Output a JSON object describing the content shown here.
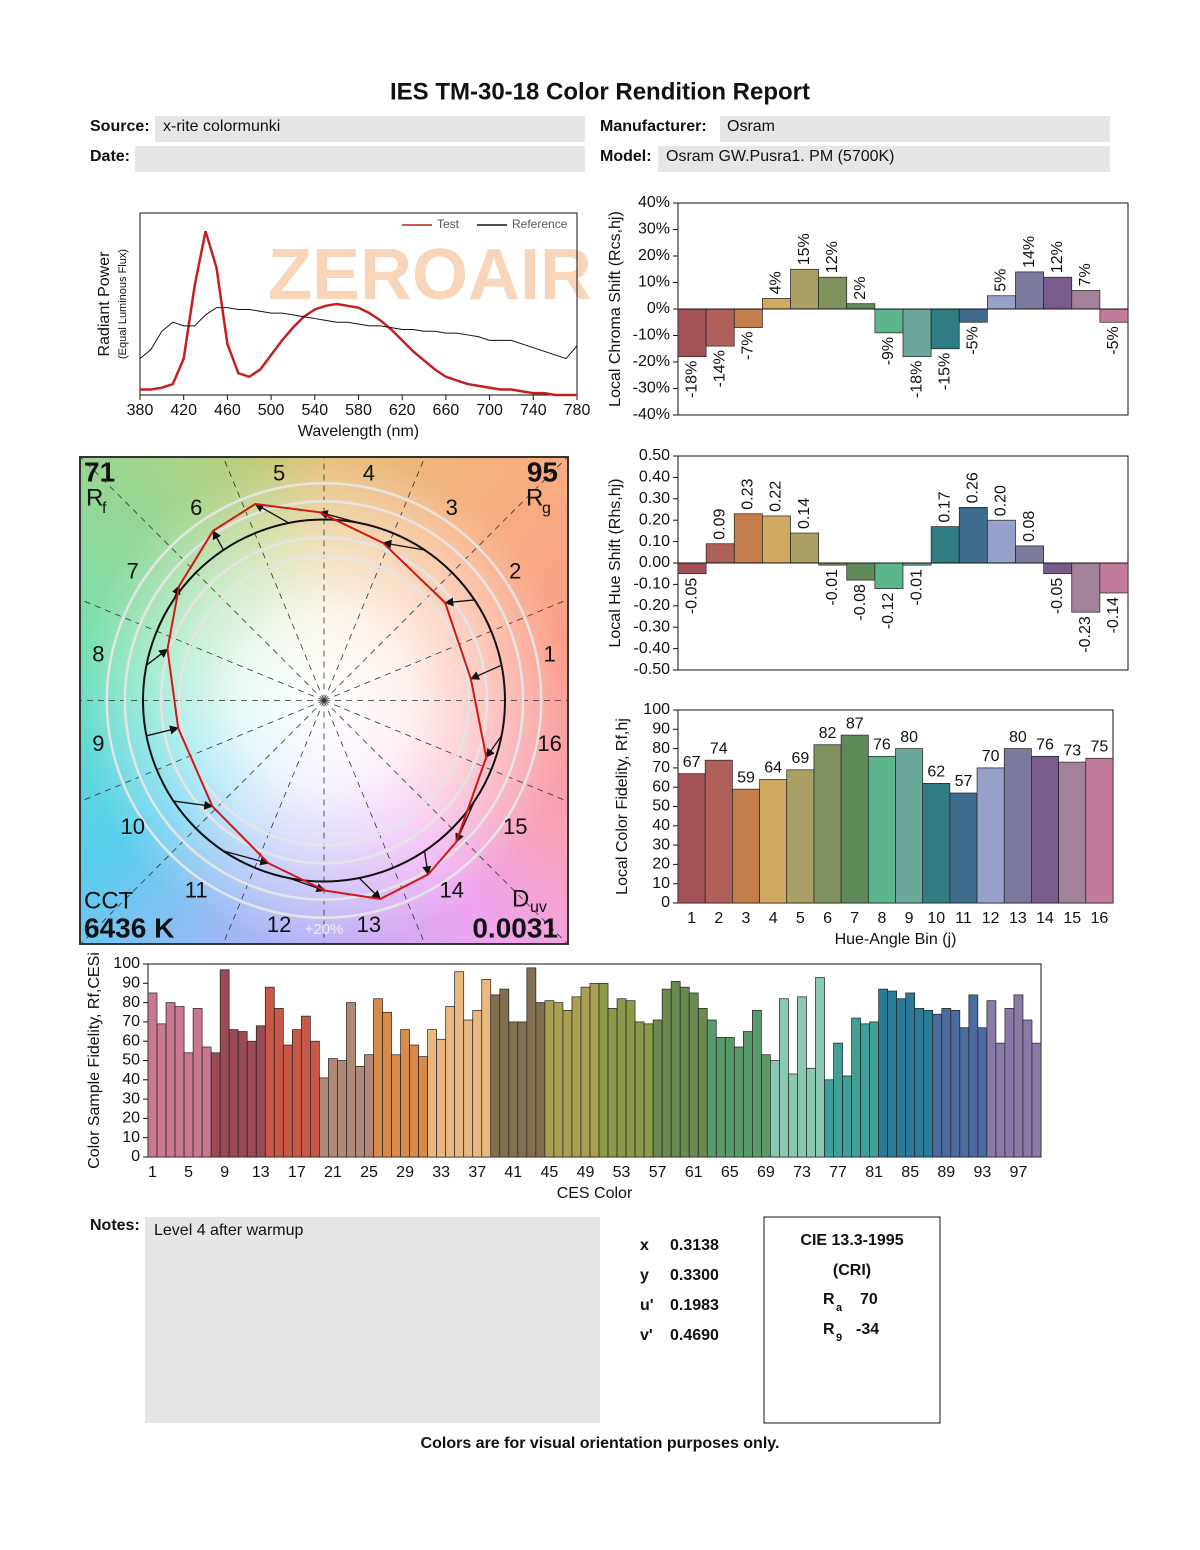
{
  "header": {
    "title": "IES TM-30-18 Color Rendition Report",
    "source_label": "Source:",
    "source": "x-rite colormunki",
    "manufacturer_label": "Manufacturer:",
    "manufacturer": "Osram",
    "date_label": "Date:",
    "model_label": "Model:",
    "model": "Osram GW.Pusra1. PM (5700K)"
  },
  "watermark": "ZEROAIR",
  "chart_data": [
    {
      "type": "line",
      "x": [
        380,
        390,
        400,
        410,
        420,
        430,
        440,
        450,
        460,
        470,
        480,
        490,
        500,
        510,
        520,
        530,
        540,
        550,
        560,
        570,
        580,
        590,
        600,
        610,
        620,
        630,
        640,
        650,
        660,
        670,
        680,
        690,
        700,
        710,
        720,
        730,
        740,
        750,
        760,
        770,
        780
      ],
      "series": [
        {
          "name": "Test",
          "color": "#c42020",
          "values": [
            0.03,
            0.03,
            0.04,
            0.06,
            0.2,
            0.6,
            0.9,
            0.7,
            0.28,
            0.12,
            0.1,
            0.14,
            0.22,
            0.3,
            0.37,
            0.43,
            0.47,
            0.49,
            0.5,
            0.49,
            0.48,
            0.45,
            0.41,
            0.36,
            0.3,
            0.24,
            0.19,
            0.14,
            0.1,
            0.08,
            0.06,
            0.05,
            0.04,
            0.03,
            0.03,
            0.02,
            0.01,
            0.01,
            0.0,
            0.0,
            0.0
          ]
        },
        {
          "name": "Reference",
          "color": "#111111",
          "values": [
            0.2,
            0.25,
            0.35,
            0.4,
            0.38,
            0.38,
            0.44,
            0.48,
            0.48,
            0.47,
            0.47,
            0.46,
            0.45,
            0.45,
            0.44,
            0.43,
            0.42,
            0.41,
            0.4,
            0.4,
            0.39,
            0.38,
            0.38,
            0.37,
            0.36,
            0.36,
            0.35,
            0.35,
            0.34,
            0.34,
            0.33,
            0.32,
            0.3,
            0.3,
            0.3,
            0.28,
            0.26,
            0.24,
            0.22,
            0.2,
            0.27
          ]
        }
      ],
      "xlim": [
        380,
        780
      ],
      "xticks": [
        380,
        420,
        460,
        500,
        540,
        580,
        620,
        660,
        700,
        740,
        780
      ],
      "ylim": [
        0,
        1
      ],
      "xlabel": "Wavelength (nm)",
      "ylabel": "Radiant Power",
      "ylabel_sub": "(Equal Luminous Flux)"
    },
    {
      "type": "bar",
      "values": [
        -18,
        -14,
        -7,
        4,
        15,
        12,
        2,
        -9,
        -18,
        -15,
        -5,
        5,
        14,
        12,
        7,
        -5
      ],
      "value_labels": [
        "-18%",
        "-14%",
        "-7%",
        "4%",
        "15%",
        "12%",
        "2%",
        "-9%",
        "-18%",
        "-15%",
        "-5%",
        "5%",
        "14%",
        "12%",
        "7%",
        "-5%"
      ],
      "label_rotate": true,
      "ylim": [
        -40,
        40
      ],
      "yticks": [
        {
          "value": 40,
          "label": "40%"
        },
        {
          "value": 30,
          "label": "30%"
        },
        {
          "value": 20,
          "label": "20%"
        },
        {
          "value": 10,
          "label": "10%"
        },
        {
          "value": 0,
          "label": "0%"
        },
        {
          "value": -10,
          "label": "-10%"
        },
        {
          "value": -20,
          "label": "-20%"
        },
        {
          "value": -30,
          "label": "-30%"
        },
        {
          "value": -40,
          "label": "-40%"
        }
      ],
      "ylabel": "Local Chroma Shift (Rcs,hj)",
      "colors": [
        "#a35057",
        "#b0605a",
        "#c27d4a",
        "#d0aa63",
        "#aaa065",
        "#81915d",
        "#5f8a5a",
        "#5db58d",
        "#6ba79a",
        "#2f7c83",
        "#3e6a8c",
        "#97a0c9",
        "#7b7a9c",
        "#785d8c",
        "#a2819a",
        "#c27b9a"
      ]
    },
    {
      "type": "bar",
      "values": [
        -0.05,
        0.09,
        0.23,
        0.22,
        0.14,
        -0.01,
        -0.08,
        -0.12,
        -0.01,
        0.17,
        0.26,
        0.2,
        0.08,
        -0.05,
        -0.23,
        -0.14
      ],
      "value_labels": [
        "-0.05",
        "0.09",
        "0.23",
        "0.22",
        "0.14",
        "-0.01",
        "-0.08",
        "-0.12",
        "-0.01",
        "0.17",
        "0.26",
        "0.20",
        "0.08",
        "-0.05",
        "-0.23",
        "-0.14"
      ],
      "label_rotate": true,
      "ylim": [
        -0.5,
        0.5
      ],
      "yticks": [
        {
          "value": 0.5,
          "label": "0.50"
        },
        {
          "value": 0.4,
          "label": "0.40"
        },
        {
          "value": 0.3,
          "label": "0.30"
        },
        {
          "value": 0.2,
          "label": "0.20"
        },
        {
          "value": 0.1,
          "label": "0.10"
        },
        {
          "value": 0,
          "label": "0.00"
        },
        {
          "value": -0.1,
          "label": "-0.10"
        },
        {
          "value": -0.2,
          "label": "-0.20"
        },
        {
          "value": -0.3,
          "label": "-0.30"
        },
        {
          "value": -0.4,
          "label": "-0.40"
        },
        {
          "value": -0.5,
          "label": "-0.50"
        }
      ],
      "ylabel": "Local Hue Shift (Rhs,hj)",
      "colors": [
        "#a35057",
        "#b0605a",
        "#c27d4a",
        "#d0aa63",
        "#aaa065",
        "#81915d",
        "#5f8a5a",
        "#5db58d",
        "#6ba79a",
        "#2f7c83",
        "#3e6a8c",
        "#97a0c9",
        "#7b7a9c",
        "#785d8c",
        "#a2819a",
        "#c27b9a"
      ]
    },
    {
      "type": "bar",
      "categories": [
        "1",
        "2",
        "3",
        "4",
        "5",
        "6",
        "7",
        "8",
        "9",
        "10",
        "11",
        "12",
        "13",
        "14",
        "15",
        "16"
      ],
      "values": [
        67,
        74,
        59,
        64,
        69,
        82,
        87,
        76,
        80,
        62,
        57,
        70,
        80,
        76,
        73,
        75
      ],
      "show_values": true,
      "ylim": [
        0,
        100
      ],
      "yticks": [
        0,
        10,
        20,
        30,
        40,
        50,
        60,
        70,
        80,
        90,
        100
      ],
      "xlabel": "Hue-Angle Bin (j)",
      "ylabel": "Local Color Fidelity, Rf,hj",
      "colors": [
        "#a35057",
        "#b0605a",
        "#c27d4a",
        "#d0aa63",
        "#aaa065",
        "#81915d",
        "#5f8a5a",
        "#5db58d",
        "#6ba79a",
        "#2f7c83",
        "#3e6a8c",
        "#97a0c9",
        "#7b7a9c",
        "#785d8c",
        "#a2819a",
        "#c27b9a"
      ]
    },
    {
      "type": "vector",
      "categories": [
        "1",
        "2",
        "3",
        "4",
        "5",
        "6",
        "7",
        "8",
        "9",
        "10",
        "11",
        "12",
        "13",
        "14",
        "15",
        "16"
      ],
      "rf": 71,
      "rf_symbol": "R",
      "rf_sub": "f",
      "rg": 95,
      "rg_symbol": "R",
      "rg_sub": "g",
      "cct_label": "CCT",
      "cct": "6436 K",
      "duv_symbol": "D",
      "duv_sub": "uv",
      "duv": 0.0031,
      "scale_label": "+20%"
    },
    {
      "type": "bar",
      "categories": [
        1,
        null,
        null,
        null,
        5,
        null,
        null,
        null,
        9,
        null,
        null,
        null,
        13,
        null,
        null,
        null,
        17,
        null,
        null,
        null,
        21,
        null,
        null,
        null,
        25,
        null,
        null,
        null,
        29,
        null,
        null,
        null,
        33,
        null,
        null,
        null,
        37,
        null,
        null,
        null,
        41,
        null,
        null,
        null,
        45,
        null,
        null,
        null,
        49,
        null,
        null,
        null,
        53,
        null,
        null,
        null,
        57,
        null,
        null,
        null,
        61,
        null,
        null,
        null,
        65,
        null,
        null,
        null,
        69,
        null,
        null,
        null,
        73,
        null,
        null,
        null,
        77,
        null,
        null,
        null,
        81,
        null,
        null,
        null,
        85,
        null,
        null,
        null,
        89,
        null,
        null,
        null,
        93,
        null,
        null,
        null,
        97,
        null,
        null
      ],
      "values": [
        85,
        69,
        80,
        78,
        54,
        77,
        57,
        54,
        97,
        66,
        65,
        60,
        68,
        88,
        77,
        58,
        66,
        73,
        60,
        41,
        51,
        50,
        80,
        47,
        53,
        82,
        75,
        53,
        66,
        58,
        52,
        66,
        61,
        78,
        96,
        71,
        76,
        92,
        84,
        87,
        70,
        70,
        98,
        80,
        81,
        80,
        76,
        83,
        88,
        90,
        90,
        77,
        82,
        81,
        70,
        69,
        71,
        87,
        91,
        88,
        85,
        77,
        71,
        62,
        62,
        57,
        65,
        76,
        53,
        50,
        82,
        43,
        83,
        46,
        93,
        40,
        59,
        42,
        72,
        69,
        70,
        87,
        86,
        82,
        85,
        77,
        76,
        74,
        77,
        76,
        67,
        84,
        67,
        81,
        59,
        77,
        84,
        71,
        59
      ],
      "ylim": [
        0,
        100
      ],
      "yticks": [
        0,
        10,
        20,
        30,
        40,
        50,
        60,
        70,
        80,
        90,
        100
      ],
      "xlabel": "CES Color",
      "ylabel": "Color Sample Fidelity, Rf,CESi",
      "colors": [
        "#c97890",
        "#9a4a55",
        "#c85848",
        "#b08878",
        "#d88a48",
        "#e8b880",
        "#807050",
        "#a8a050",
        "#8a9a48",
        "#6a8a50",
        "#5a9a6a",
        "#8ac8b0",
        "#40a098",
        "#2a7a98",
        "#4a6aa0",
        "#8a7aa8"
      ]
    }
  ],
  "notes": {
    "label": "Notes:",
    "text": "Level 4 after warmup"
  },
  "chromaticity": [
    [
      "x",
      "0.3138"
    ],
    [
      "y",
      "0.3300"
    ],
    [
      "u'",
      "0.1983"
    ],
    [
      "v'",
      "0.4690"
    ]
  ],
  "cri": {
    "title": "CIE 13.3-1995",
    "subtitle": "(CRI)",
    "ra_symbol": "R",
    "ra_sub": "a",
    "ra": 70,
    "r9_symbol": "R",
    "r9_sub": "9",
    "r9": -34
  },
  "footer": "Colors are for visual orientation purposes only."
}
